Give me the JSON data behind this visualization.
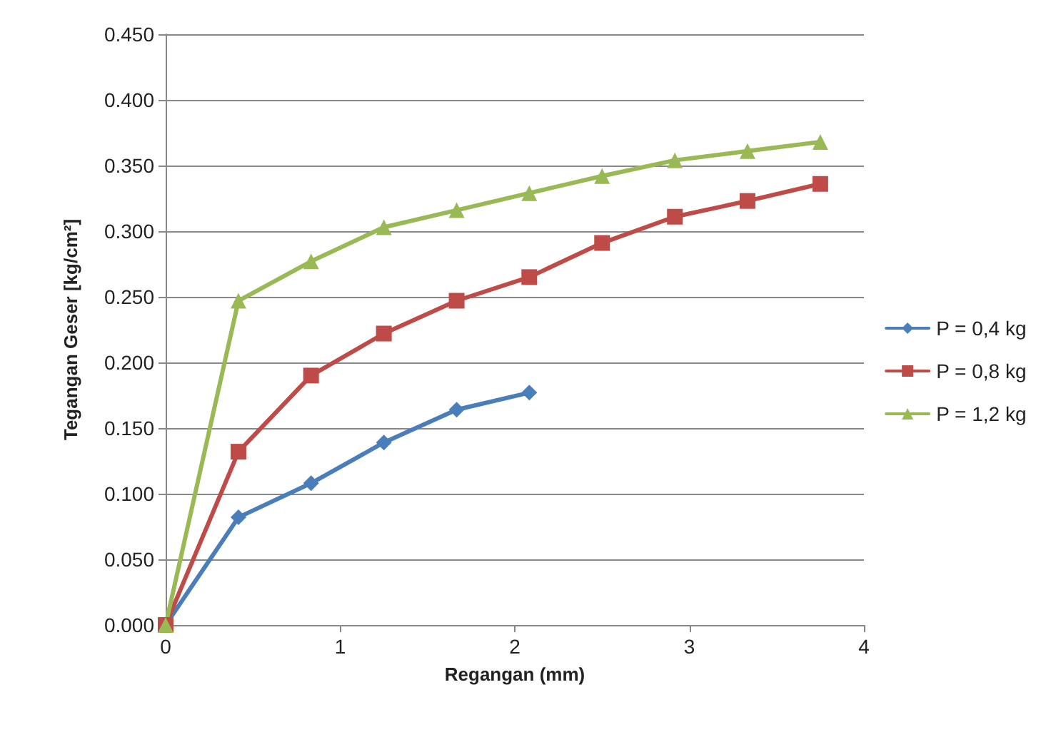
{
  "chart_data": {
    "type": "line",
    "xlabel": "Regangan (mm)",
    "ylabel": "Tegangan Geser [kg/cm²]",
    "x": [
      0,
      0.417,
      0.833,
      1.25,
      1.667,
      2.083,
      2.5,
      2.917,
      3.333,
      3.75
    ],
    "series": [
      {
        "name": "P = 0,4 kg",
        "color": "#4a7ebb",
        "marker": "diamond",
        "values": [
          0,
          0.082,
          0.108,
          0.139,
          0.164,
          0.177,
          null,
          null,
          null,
          null
        ]
      },
      {
        "name": "P = 0,8 kg",
        "color": "#be4b48",
        "marker": "square",
        "values": [
          0,
          0.132,
          0.19,
          0.222,
          0.247,
          0.265,
          0.291,
          0.311,
          0.323,
          0.336
        ]
      },
      {
        "name": "P = 1,2 kg",
        "color": "#98b954",
        "marker": "triangle",
        "values": [
          0,
          0.247,
          0.277,
          0.303,
          0.316,
          0.329,
          0.342,
          0.354,
          0.361,
          0.368
        ]
      }
    ],
    "xlim": [
      0,
      4
    ],
    "xticks": [
      0,
      1,
      2,
      3,
      4
    ],
    "ylim": [
      0,
      0.45
    ],
    "yticks": [
      {
        "value": 0,
        "label": "0.000"
      },
      {
        "value": 0.05,
        "label": "0.050"
      },
      {
        "value": 0.1,
        "label": "0.100"
      },
      {
        "value": 0.15,
        "label": "0.150"
      },
      {
        "value": 0.2,
        "label": "0.200"
      },
      {
        "value": 0.25,
        "label": "0.250"
      },
      {
        "value": 0.3,
        "label": "0.300"
      },
      {
        "value": 0.35,
        "label": "0.350"
      },
      {
        "value": 0.4,
        "label": "0.400"
      },
      {
        "value": 0.45,
        "label": "0.450"
      }
    ],
    "grid": "y",
    "legend": "right",
    "line_style": "solid"
  }
}
